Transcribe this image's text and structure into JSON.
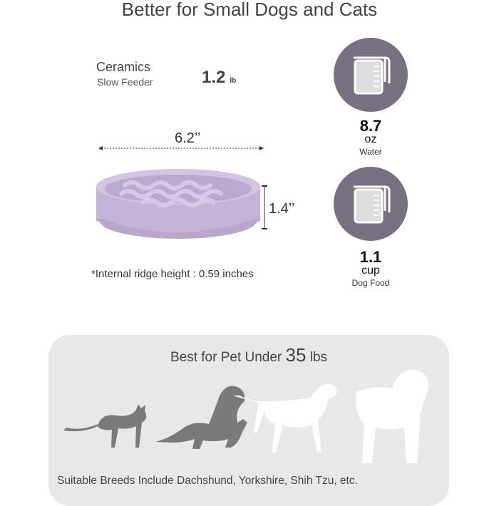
{
  "title": "Better for Small Dogs and Cats",
  "material": {
    "line1": "Ceramics",
    "line2": "Slow Feeder"
  },
  "weight": {
    "value": "1.2",
    "unit": "lb"
  },
  "dimensions": {
    "width": "6.2’’",
    "height": "1.4’’"
  },
  "note": "*Internal ridge height : 0.59 inches",
  "capacities": [
    {
      "icon": "measuring-jug-icon",
      "value": "8.7",
      "unit": "oz",
      "label": "Water"
    },
    {
      "icon": "measuring-jug-icon",
      "value": "1.1",
      "unit": "cup",
      "label": "Dog Food"
    }
  ],
  "colors": {
    "bowl": "#c6b4d8",
    "circle": "#777080",
    "panel": "#e8e8e8",
    "pet_small": "#7a7a7a",
    "pet_large": "#ffffff"
  },
  "pets": {
    "title_prefix": "Best for Pet Under ",
    "title_number": "35",
    "title_suffix": " lbs",
    "icons": [
      "cat-icon",
      "dachshund-icon",
      "retriever-icon",
      "large-dog-icon"
    ],
    "breeds": "Suitable Breeds Include Dachshund, Yorkshire, Shih Tzu, etc."
  }
}
